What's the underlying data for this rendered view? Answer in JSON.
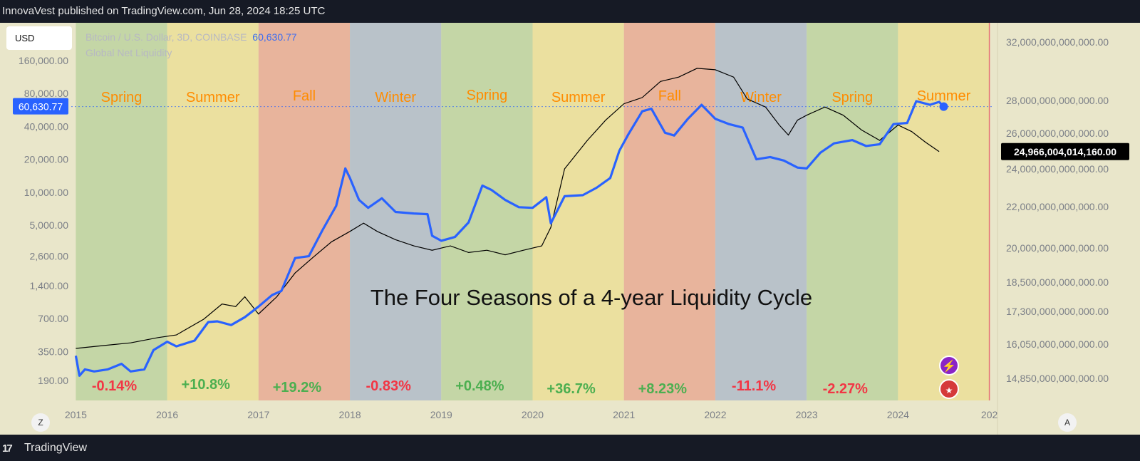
{
  "header": {
    "published_by": "InnovaVest published on TradingView.com, Jun 28, 2024 18:25 UTC"
  },
  "footer": {
    "brand": "TradingView"
  },
  "currency_button": "USD",
  "legend": {
    "btc_label": "Bitcoin / U.S. Dollar, 3D, COINBASE",
    "btc_price": "60,630.77",
    "gnl_label": "Global Net Liquidity"
  },
  "controls": {
    "zoom": "Z",
    "auto": "A"
  },
  "colors": {
    "btc_line": "#2962ff",
    "liquidity_line": "#000000",
    "spring": "#c4d6a6",
    "summer": "#ebe09f",
    "fall": "#e8b49c",
    "winter": "#b9c2c9",
    "season_label": "#ff8c00",
    "positive": "#4caf50",
    "negative": "#f23645"
  },
  "chart_data": {
    "type": "line",
    "title": "The Four Seasons of a 4-year Liquidity Cycle",
    "x_ticks": [
      "2015",
      "2016",
      "2017",
      "2018",
      "2019",
      "2020",
      "2021",
      "2022",
      "2023",
      "2024",
      "202"
    ],
    "x_range": [
      2014.95,
      2025.05
    ],
    "left_axis": {
      "scale": "log",
      "ticks": [
        "160,000.00",
        "80,000.00",
        "40,000.00",
        "20,000.00",
        "10,000.00",
        "5,000.00",
        "2,600.00",
        "1,400.00",
        "700.00",
        "350.00",
        "190.00"
      ],
      "current_label": "60,630.77"
    },
    "right_axis": {
      "ticks": [
        "32,000,000,000,000.00",
        "28,000,000,000,000.00",
        "26,000,000,000,000.00",
        "24,000,000,000,000.00",
        "22,000,000,000,000.00",
        "20,000,000,000,000.00",
        "18,500,000,000,000.00",
        "17,300,000,000,000.00",
        "16,050,000,000,000.00",
        "14,850,000,000,000.00"
      ],
      "current_label": "24,966,004,014,160.00"
    },
    "seasons": [
      {
        "name": "Spring",
        "start": 2015.0,
        "end": 2016.0,
        "kind": "spring",
        "return": "-0.14%",
        "sign": "negative"
      },
      {
        "name": "Summer",
        "start": 2016.0,
        "end": 2017.0,
        "kind": "summer",
        "return": "+10.8%",
        "sign": "positive"
      },
      {
        "name": "Fall",
        "start": 2017.0,
        "end": 2018.0,
        "kind": "fall",
        "return": "+19.2%",
        "sign": "positive"
      },
      {
        "name": "Winter",
        "start": 2018.0,
        "end": 2019.0,
        "kind": "winter",
        "return": "-0.83%",
        "sign": "negative"
      },
      {
        "name": "Spring",
        "start": 2019.0,
        "end": 2020.0,
        "kind": "spring",
        "return": "+0.48%",
        "sign": "positive"
      },
      {
        "name": "Summer",
        "start": 2020.0,
        "end": 2021.0,
        "kind": "summer",
        "return": "+36.7%",
        "sign": "positive"
      },
      {
        "name": "Fall",
        "start": 2021.0,
        "end": 2022.0,
        "kind": "fall",
        "return": "+8.23%",
        "sign": "positive"
      },
      {
        "name": "Winter",
        "start": 2022.0,
        "end": 2023.0,
        "kind": "winter",
        "return": "-11.1%",
        "sign": "negative"
      },
      {
        "name": "Spring",
        "start": 2023.0,
        "end": 2024.0,
        "kind": "spring",
        "return": "-2.27%",
        "sign": "negative"
      },
      {
        "name": "Summer",
        "start": 2024.0,
        "end": 2025.0,
        "kind": "summer",
        "return": "",
        "sign": ""
      }
    ],
    "series": [
      {
        "name": "Bitcoin / U.S. Dollar, 3D, COINBASE",
        "axis": "left",
        "points": [
          [
            2015.0,
            320
          ],
          [
            2015.04,
            210
          ],
          [
            2015.1,
            240
          ],
          [
            2015.2,
            230
          ],
          [
            2015.35,
            240
          ],
          [
            2015.5,
            270
          ],
          [
            2015.6,
            230
          ],
          [
            2015.75,
            240
          ],
          [
            2015.85,
            360
          ],
          [
            2016.0,
            430
          ],
          [
            2016.1,
            390
          ],
          [
            2016.3,
            440
          ],
          [
            2016.45,
            650
          ],
          [
            2016.55,
            660
          ],
          [
            2016.7,
            610
          ],
          [
            2016.85,
            720
          ],
          [
            2017.0,
            900
          ],
          [
            2017.15,
            1150
          ],
          [
            2017.25,
            1250
          ],
          [
            2017.4,
            2500
          ],
          [
            2017.55,
            2600
          ],
          [
            2017.7,
            4500
          ],
          [
            2017.85,
            7500
          ],
          [
            2017.95,
            16500
          ],
          [
            2018.0,
            13500
          ],
          [
            2018.1,
            8500
          ],
          [
            2018.2,
            7200
          ],
          [
            2018.35,
            8800
          ],
          [
            2018.5,
            6600
          ],
          [
            2018.7,
            6400
          ],
          [
            2018.85,
            6300
          ],
          [
            2018.9,
            4000
          ],
          [
            2019.0,
            3600
          ],
          [
            2019.15,
            3900
          ],
          [
            2019.3,
            5300
          ],
          [
            2019.45,
            11500
          ],
          [
            2019.55,
            10500
          ],
          [
            2019.7,
            8500
          ],
          [
            2019.85,
            7300
          ],
          [
            2020.0,
            7200
          ],
          [
            2020.15,
            9000
          ],
          [
            2020.2,
            5200
          ],
          [
            2020.35,
            9200
          ],
          [
            2020.55,
            9400
          ],
          [
            2020.7,
            11000
          ],
          [
            2020.85,
            13500
          ],
          [
            2020.95,
            24000
          ],
          [
            2021.05,
            34000
          ],
          [
            2021.2,
            55000
          ],
          [
            2021.3,
            58000
          ],
          [
            2021.45,
            35000
          ],
          [
            2021.55,
            33000
          ],
          [
            2021.7,
            47000
          ],
          [
            2021.85,
            63000
          ],
          [
            2022.0,
            47000
          ],
          [
            2022.15,
            42000
          ],
          [
            2022.3,
            39000
          ],
          [
            2022.45,
            20000
          ],
          [
            2022.6,
            21000
          ],
          [
            2022.75,
            19500
          ],
          [
            2022.9,
            16800
          ],
          [
            2023.0,
            16500
          ],
          [
            2023.15,
            23000
          ],
          [
            2023.3,
            28000
          ],
          [
            2023.5,
            30000
          ],
          [
            2023.65,
            26500
          ],
          [
            2023.8,
            27500
          ],
          [
            2023.95,
            42000
          ],
          [
            2024.1,
            43000
          ],
          [
            2024.2,
            68000
          ],
          [
            2024.35,
            63000
          ],
          [
            2024.45,
            67000
          ],
          [
            2024.5,
            60630.77
          ]
        ]
      },
      {
        "name": "Global Net Liquidity",
        "axis": "right",
        "points": [
          [
            2015.0,
            15.9
          ],
          [
            2015.3,
            16.0
          ],
          [
            2015.6,
            16.1
          ],
          [
            2015.9,
            16.3
          ],
          [
            2016.1,
            16.4
          ],
          [
            2016.4,
            17.0
          ],
          [
            2016.6,
            17.6
          ],
          [
            2016.75,
            17.5
          ],
          [
            2016.85,
            17.9
          ],
          [
            2017.0,
            17.2
          ],
          [
            2017.2,
            17.9
          ],
          [
            2017.4,
            18.9
          ],
          [
            2017.6,
            19.6
          ],
          [
            2017.8,
            20.3
          ],
          [
            2018.0,
            20.8
          ],
          [
            2018.15,
            21.2
          ],
          [
            2018.3,
            20.8
          ],
          [
            2018.5,
            20.4
          ],
          [
            2018.7,
            20.1
          ],
          [
            2018.9,
            19.9
          ],
          [
            2019.1,
            20.1
          ],
          [
            2019.3,
            19.8
          ],
          [
            2019.5,
            19.9
          ],
          [
            2019.7,
            19.7
          ],
          [
            2019.9,
            19.9
          ],
          [
            2020.1,
            20.1
          ],
          [
            2020.2,
            21.0
          ],
          [
            2020.35,
            24.0
          ],
          [
            2020.6,
            25.6
          ],
          [
            2020.8,
            26.8
          ],
          [
            2021.0,
            27.8
          ],
          [
            2021.2,
            28.2
          ],
          [
            2021.4,
            29.3
          ],
          [
            2021.6,
            29.6
          ],
          [
            2021.8,
            30.2
          ],
          [
            2022.0,
            30.1
          ],
          [
            2022.2,
            29.6
          ],
          [
            2022.35,
            28.1
          ],
          [
            2022.55,
            27.6
          ],
          [
            2022.7,
            26.5
          ],
          [
            2022.8,
            25.9
          ],
          [
            2022.9,
            26.8
          ],
          [
            2023.0,
            27.1
          ],
          [
            2023.2,
            27.6
          ],
          [
            2023.4,
            27.1
          ],
          [
            2023.6,
            26.2
          ],
          [
            2023.8,
            25.6
          ],
          [
            2024.0,
            26.5
          ],
          [
            2024.15,
            26.1
          ],
          [
            2024.3,
            25.5
          ],
          [
            2024.45,
            24.97
          ]
        ]
      }
    ]
  }
}
